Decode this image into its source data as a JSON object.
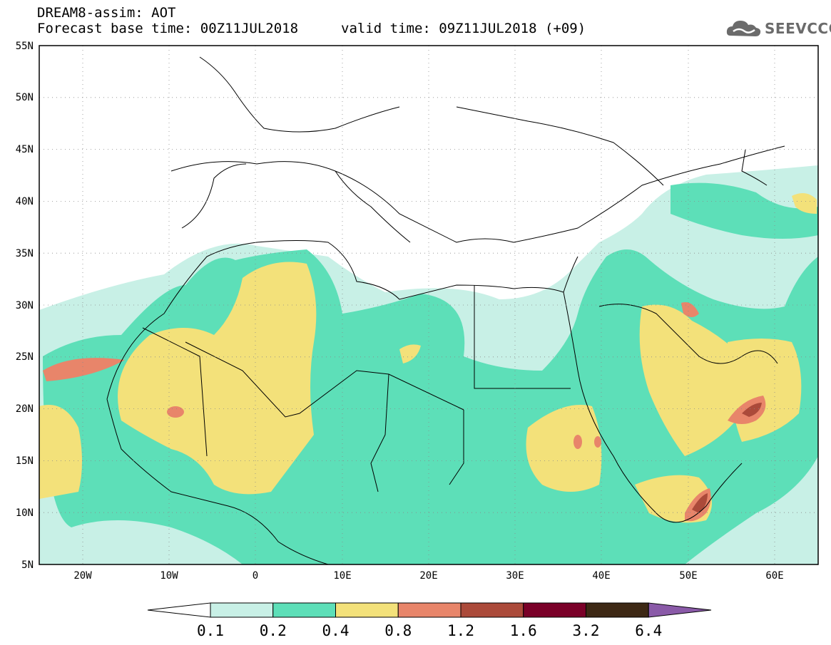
{
  "header": {
    "line1": "DREAM8-assim: AOT",
    "line2": "Forecast base time: 00Z11JUL2018",
    "valid": "valid time: 09Z11JUL2018 (+09)"
  },
  "logo": {
    "text": "SEEVCCC",
    "icon": "cloud-icon"
  },
  "map": {
    "lat_labels": [
      "55N",
      "50N",
      "45N",
      "40N",
      "35N",
      "30N",
      "25N",
      "20N",
      "15N",
      "10N",
      "5N"
    ],
    "lon_labels": [
      "20W",
      "10W",
      "0",
      "10E",
      "20E",
      "30E",
      "40E",
      "50E",
      "60E"
    ],
    "lon_range": [
      -25,
      65
    ],
    "lat_range": [
      5,
      55
    ],
    "grid": "dotted"
  },
  "colorbar": {
    "levels": [
      "0.1",
      "0.2",
      "0.4",
      "0.8",
      "1.2",
      "1.6",
      "3.2",
      "6.4"
    ],
    "colors": [
      "#c8f0e6",
      "#5ddfb8",
      "#f3e17a",
      "#e8856a",
      "#ab4a3a",
      "#7a0028",
      "#3d2814",
      "#8a5aa8"
    ],
    "under_color": "#ffffff"
  }
}
